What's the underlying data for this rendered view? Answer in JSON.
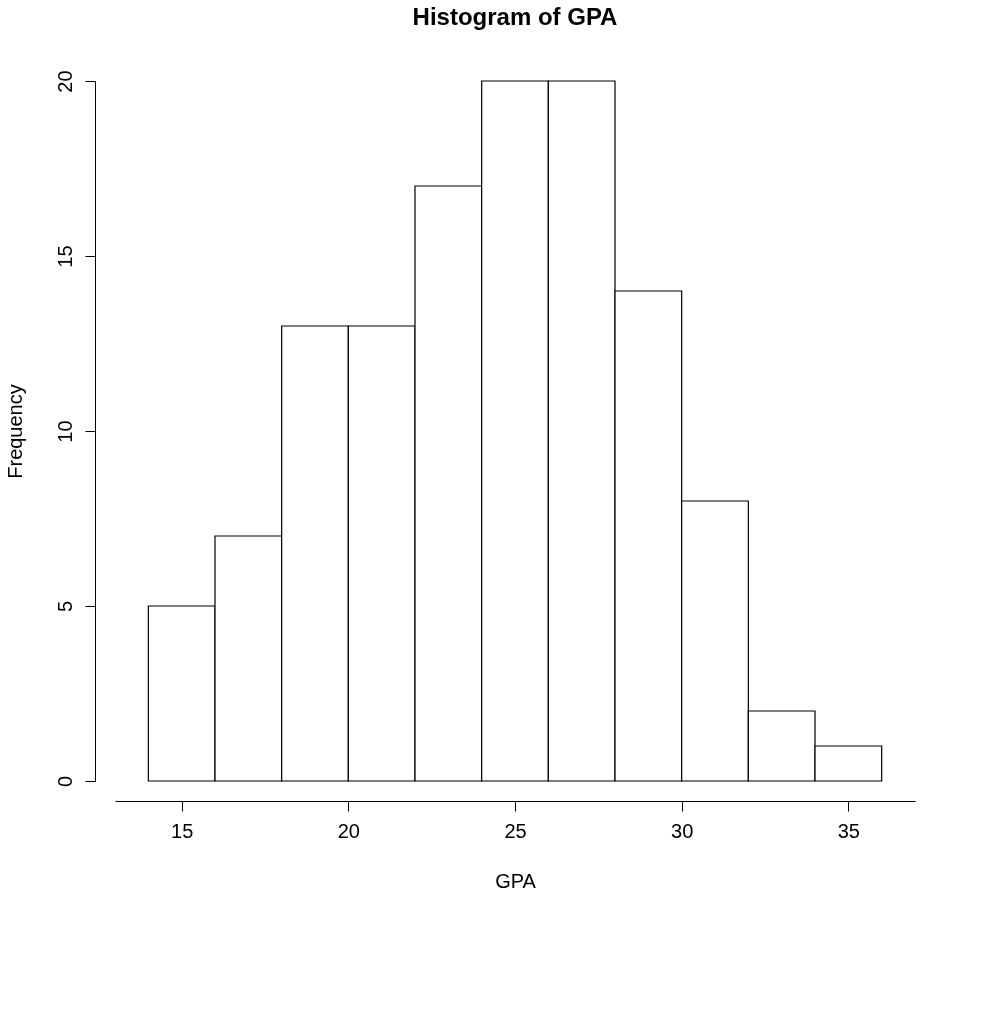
{
  "chart_data": {
    "type": "histogram",
    "title": "Histogram of GPA",
    "xlabel": "GPA",
    "ylabel": "Frequency",
    "bins": [
      14,
      16,
      18,
      20,
      22,
      24,
      26,
      28,
      30,
      32,
      34,
      36
    ],
    "values": [
      5,
      7,
      13,
      13,
      17,
      20,
      20,
      14,
      8,
      2,
      1
    ],
    "color": "#ffffff",
    "xlim": [
      13,
      37
    ],
    "xticks": [
      15,
      20,
      25,
      30,
      35
    ],
    "ylim": [
      0,
      20
    ],
    "yticks": [
      0,
      5,
      10,
      15,
      20
    ],
    "grid": false
  }
}
